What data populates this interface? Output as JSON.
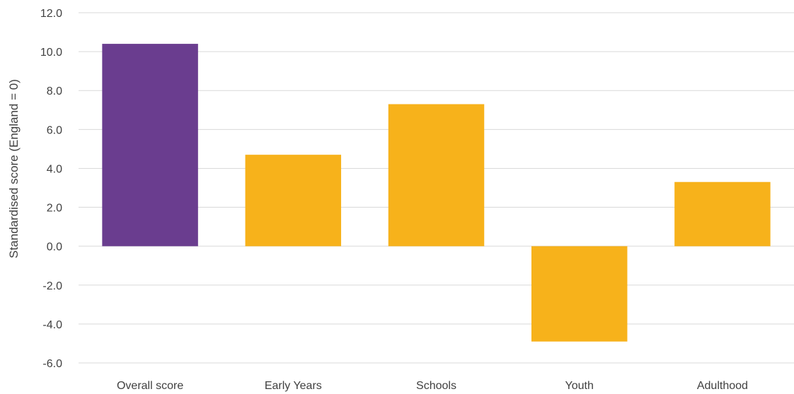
{
  "chart_data": {
    "type": "bar",
    "title": "",
    "xlabel": "",
    "ylabel": "Standardised score (England = 0)",
    "categories": [
      "Overall score",
      "Early Years",
      "Schools",
      "Youth",
      "Adulthood"
    ],
    "values": [
      10.4,
      4.7,
      7.3,
      -4.9,
      3.3
    ],
    "bar_colors": [
      "#6a3d8f",
      "#f7b21b",
      "#f7b21b",
      "#f7b21b",
      "#f7b21b"
    ],
    "ylim": [
      -6.0,
      12.0
    ],
    "yticks": [
      12.0,
      10.0,
      8.0,
      6.0,
      4.0,
      2.0,
      0.0,
      -2.0,
      -4.0,
      -6.0
    ],
    "ytick_labels": [
      "12.0",
      "10.0",
      "8.0",
      "6.0",
      "4.0",
      "2.0",
      "0.0",
      "-2.0",
      "-4.0",
      "-6.0"
    ],
    "grid": true,
    "legend": "none"
  }
}
